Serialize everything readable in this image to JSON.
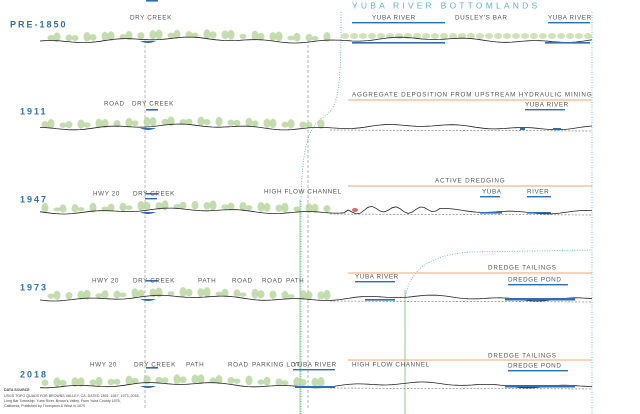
{
  "title": "YUBA RIVER BOTTOMLANDS",
  "rows": [
    {
      "year": "PRE-1850",
      "labels": [
        "DRY CREEK",
        "YUBA RIVER",
        "DUSLEY'S BAR",
        "YUBA RIVER"
      ]
    },
    {
      "year": "1911",
      "labels": [
        "ROAD",
        "DRY CREEK",
        "YUBA RIVER"
      ],
      "annotation": "AGGREGATE DEPOSITION FROM UPSTREAM HYDRAULIC MINING"
    },
    {
      "year": "1947",
      "labels": [
        "HWY 20",
        "DRY CREEK",
        "HIGH FLOW CHANNEL",
        "YUBA",
        "RIVER"
      ],
      "annotation": "ACTIVE DREDGING"
    },
    {
      "year": "1973",
      "labels": [
        "HWY 20",
        "DRY CREEK",
        "PATH",
        "ROAD",
        "ROAD",
        "PATH",
        "YUBA RIVER",
        "DREDGE POND"
      ],
      "annotation": "DREDGE TAILINGS"
    },
    {
      "year": "2018",
      "labels": [
        "HWY 20",
        "DRY CREEK",
        "PATH",
        "ROAD",
        "PARKING LOT",
        "YUBA RIVER",
        "HIGH FLOW CHANNEL",
        "DREDGE POND"
      ],
      "annotation": "DREDGE TAILINGS"
    }
  ],
  "data_source": {
    "heading": "DATA SOURCE",
    "lines": [
      "USGS TOPO QUADS FOR BROWNS VALLEY, CA, DATED 1891, 1947, 1973, 2018.",
      "Long Bar Township, Yuba River, Brown's Valley, From Yuba County 1876,",
      "California, Published by Thompson & West in 1879"
    ]
  }
}
